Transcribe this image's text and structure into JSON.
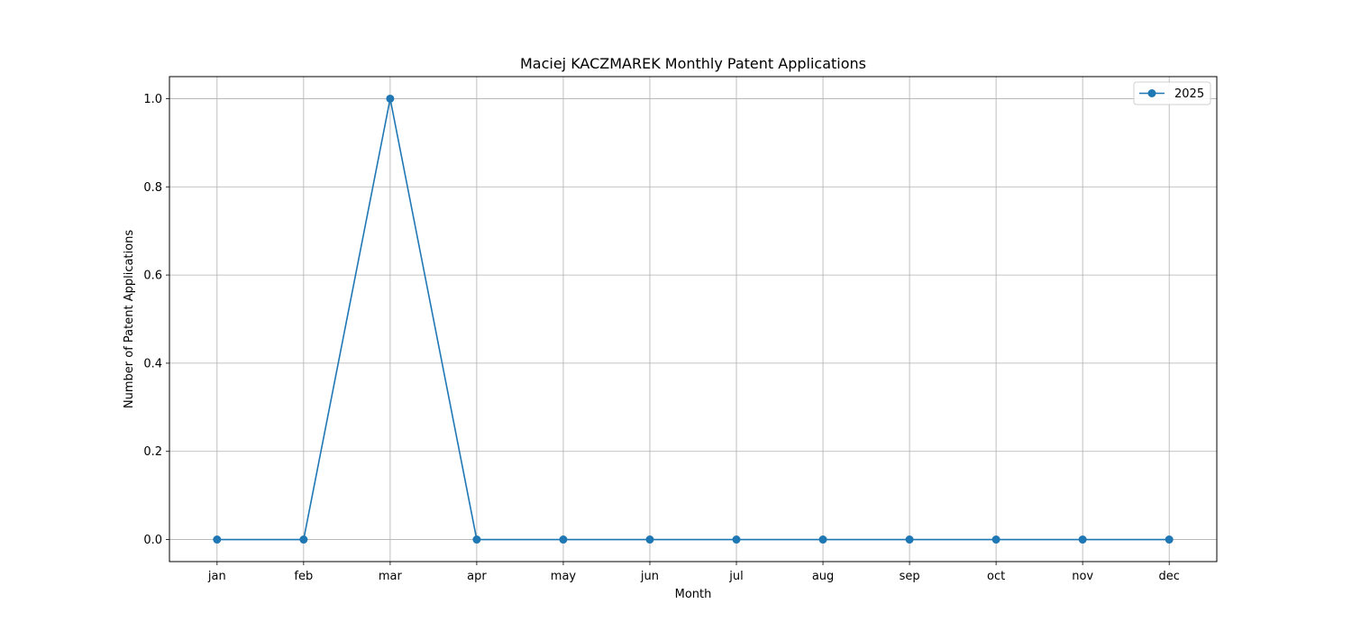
{
  "chart_data": {
    "type": "line",
    "title": "Maciej KACZMAREK Monthly Patent Applications",
    "xlabel": "Month",
    "ylabel": "Number of Patent Applications",
    "categories": [
      "jan",
      "feb",
      "mar",
      "apr",
      "may",
      "jun",
      "jul",
      "aug",
      "sep",
      "oct",
      "nov",
      "dec"
    ],
    "series": [
      {
        "name": "2025",
        "color": "#1f77b4",
        "values": [
          0,
          0,
          1,
          0,
          0,
          0,
          0,
          0,
          0,
          0,
          0,
          0
        ]
      }
    ],
    "ylim": [
      -0.05,
      1.05
    ],
    "yticks": [
      "0.0",
      "0.2",
      "0.4",
      "0.6",
      "0.8",
      "1.0"
    ],
    "grid": true,
    "legend_position": "top-right"
  }
}
